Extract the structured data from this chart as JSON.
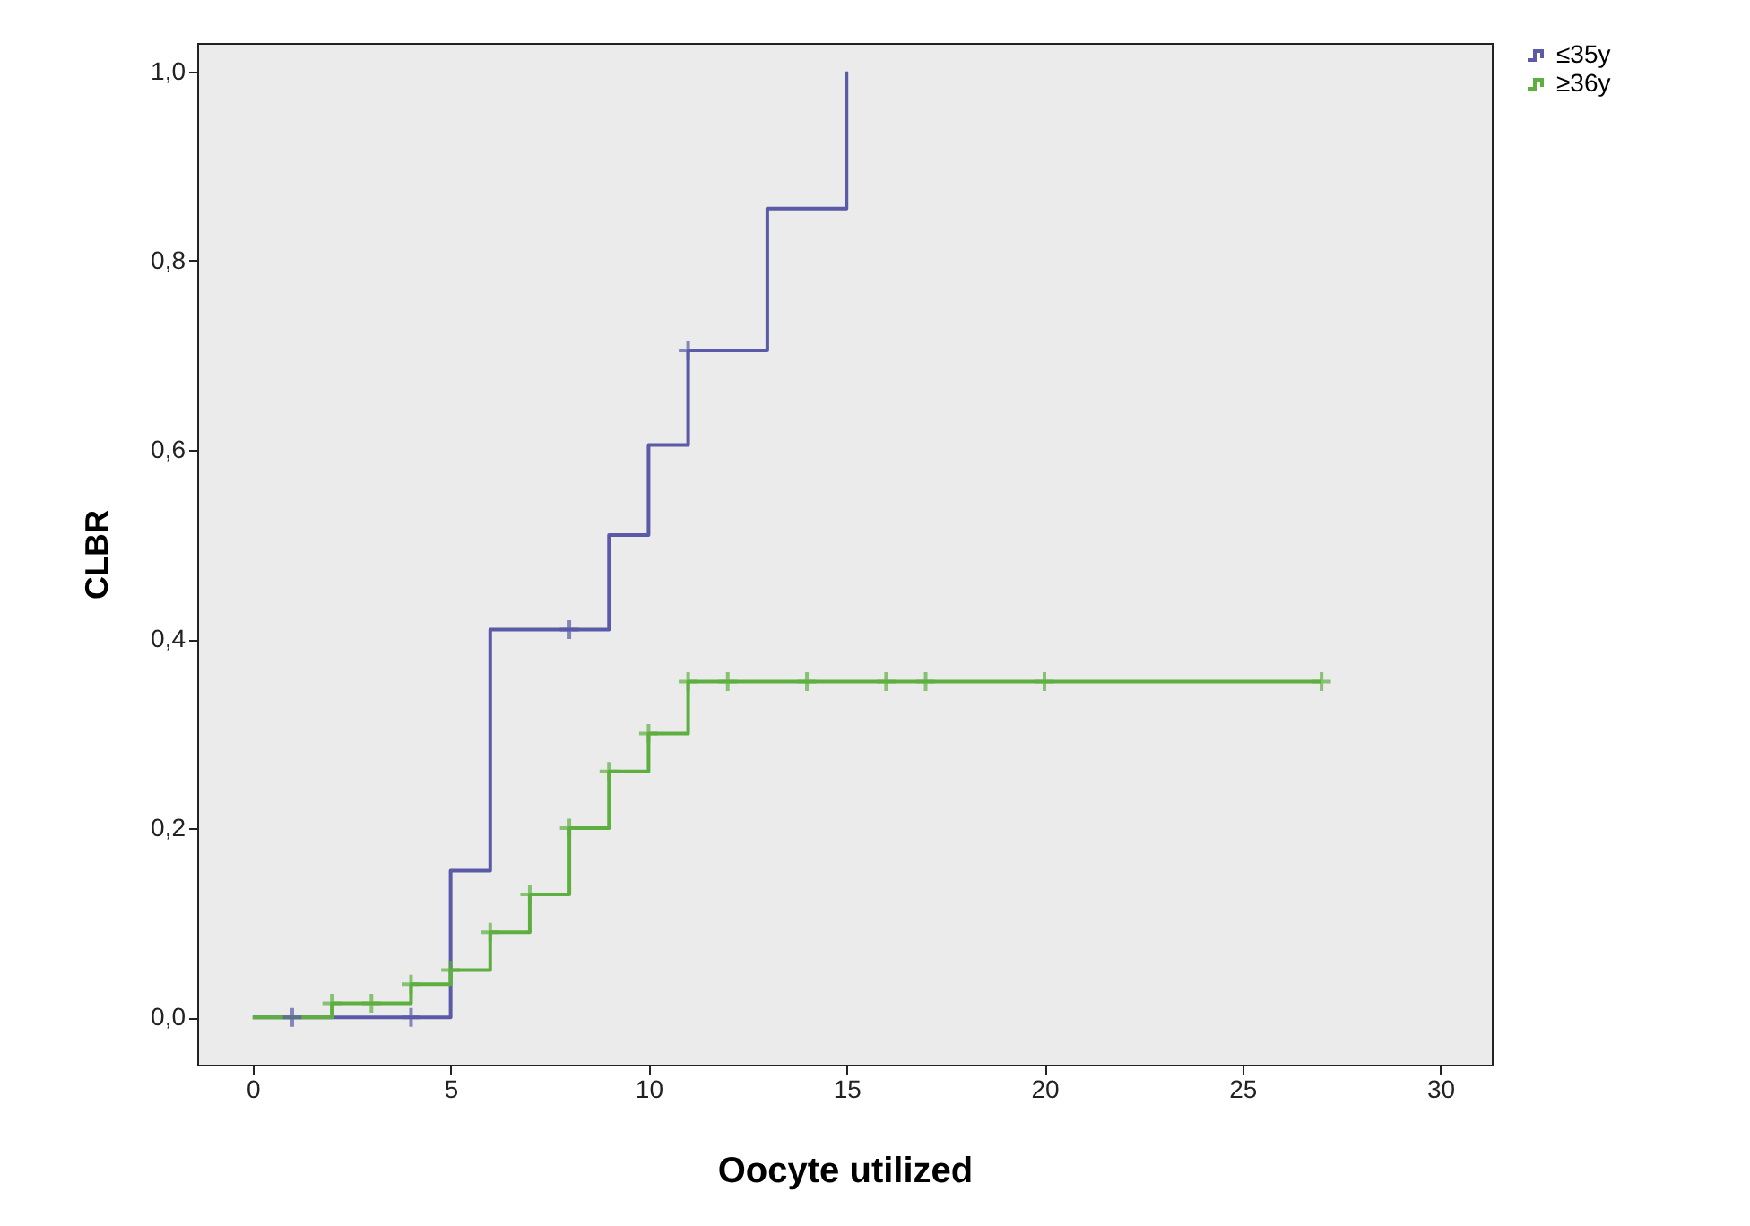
{
  "chart_data": {
    "type": "step",
    "xlabel": "Oocyte utilized",
    "ylabel": "CLBR",
    "xlim": [
      -1.4,
      31.3
    ],
    "ylim": [
      -0.05,
      1.03
    ],
    "xticks": [
      0,
      5,
      10,
      15,
      20,
      25,
      30
    ],
    "yticks": [
      {
        "value": 0,
        "label": "0,0"
      },
      {
        "value": 0.2,
        "label": "0,2"
      },
      {
        "value": 0.4,
        "label": "0,4"
      },
      {
        "value": 0.6,
        "label": "0,6"
      },
      {
        "value": 0.8,
        "label": "0,8"
      },
      {
        "value": 1.0,
        "label": "1,0"
      }
    ],
    "grid": false,
    "legend": "top right",
    "line_style": "solid",
    "series": [
      {
        "name": "≤35y",
        "color": "#5a5aa8",
        "x": [
          0,
          5,
          6,
          9,
          10,
          11,
          13,
          15
        ],
        "values": [
          0,
          0.155,
          0.41,
          0.51,
          0.605,
          0.705,
          0.855,
          1.0
        ]
      },
      {
        "name": "≥36y",
        "color": "#5db040",
        "x": [
          0,
          2,
          4,
          5,
          6,
          7,
          8,
          9,
          10,
          11,
          27
        ],
        "values": [
          0,
          0.015,
          0.035,
          0.05,
          0.09,
          0.13,
          0.2,
          0.26,
          0.3,
          0.355,
          0.355
        ]
      },
      {
        "type": "scatter",
        "marker": "cross",
        "color": "#5a5aa8",
        "x": [
          1,
          4,
          8,
          11
        ],
        "values": [
          0,
          0,
          0.41,
          0.705
        ]
      },
      {
        "type": "scatter",
        "marker": "cross",
        "color": "#5db040",
        "x": [
          2,
          3,
          4,
          5,
          6,
          7,
          8,
          9,
          10,
          11,
          12,
          14,
          16,
          17,
          20,
          27
        ],
        "values": [
          0.015,
          0.015,
          0.035,
          0.05,
          0.09,
          0.13,
          0.2,
          0.26,
          0.3,
          0.355,
          0.355,
          0.355,
          0.355,
          0.355,
          0.355,
          0.355
        ]
      }
    ]
  }
}
